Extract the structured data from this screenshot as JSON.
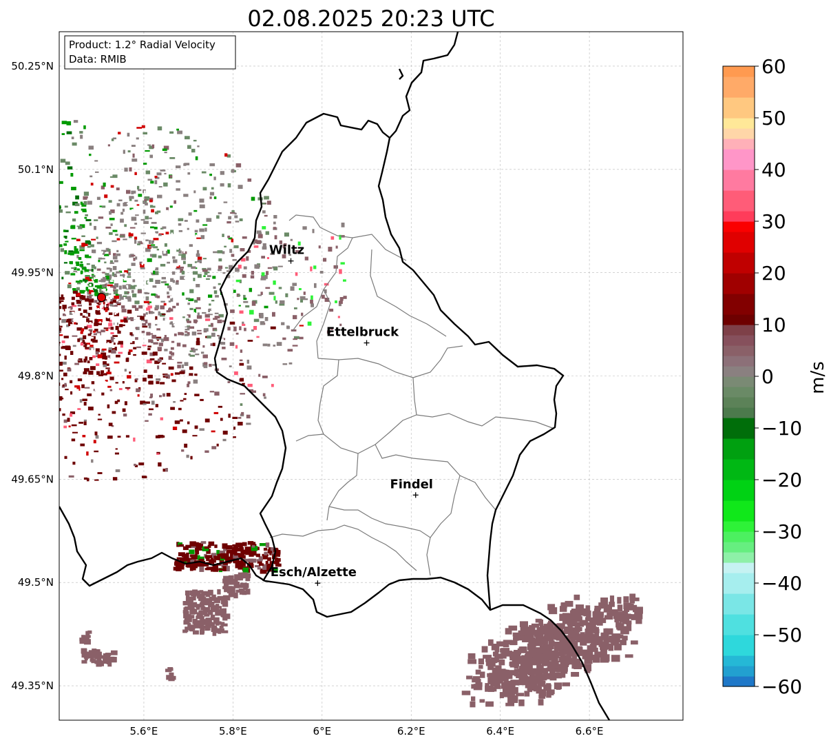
{
  "title": "02.08.2025 20:23 UTC",
  "info_box": {
    "product": "Product: 1.2° Radial Velocity",
    "source": "Data: RMIB"
  },
  "map": {
    "lon_range": [
      5.41,
      6.81
    ],
    "lat_range": [
      49.3,
      50.3
    ],
    "lon_ticks": [
      {
        "value": 5.6,
        "label": "5.6°E"
      },
      {
        "value": 5.8,
        "label": "5.8°E"
      },
      {
        "value": 6.0,
        "label": "6°E"
      },
      {
        "value": 6.2,
        "label": "6.2°E"
      },
      {
        "value": 6.4,
        "label": "6.4°E"
      },
      {
        "value": 6.6,
        "label": "6.6°E"
      }
    ],
    "lat_ticks": [
      {
        "value": 49.35,
        "label": "49.35°N"
      },
      {
        "value": 49.5,
        "label": "49.5°N"
      },
      {
        "value": 49.65,
        "label": "49.65°N"
      },
      {
        "value": 49.8,
        "label": "49.8°N"
      },
      {
        "value": 49.95,
        "label": "49.95°N"
      },
      {
        "value": 50.1,
        "label": "50.1°N"
      },
      {
        "value": 50.25,
        "label": "50.25°N"
      }
    ],
    "cities": [
      {
        "name": "Wiltz",
        "lon": 5.93,
        "lat": 49.967
      },
      {
        "name": "Ettelbruck",
        "lon": 6.1,
        "lat": 49.848
      },
      {
        "name": "Findel",
        "lon": 6.21,
        "lat": 49.627
      },
      {
        "name": "Esch/Alzette",
        "lon": 5.99,
        "lat": 49.499
      }
    ],
    "radar_site": {
      "lon": 5.505,
      "lat": 49.914
    }
  },
  "colorbar": {
    "min": -60,
    "max": 60,
    "unit_label": "m/s",
    "ticks": [
      {
        "value": 60,
        "label": "60"
      },
      {
        "value": 50,
        "label": "50"
      },
      {
        "value": 40,
        "label": "40"
      },
      {
        "value": 30,
        "label": "30"
      },
      {
        "value": 20,
        "label": "20"
      },
      {
        "value": 10,
        "label": "10"
      },
      {
        "value": 0,
        "label": "0"
      },
      {
        "value": -10,
        "label": "−10"
      },
      {
        "value": -20,
        "label": "−20"
      },
      {
        "value": -30,
        "label": "−30"
      },
      {
        "value": -40,
        "label": "−40"
      },
      {
        "value": -50,
        "label": "−50"
      },
      {
        "value": -60,
        "label": "−60"
      }
    ],
    "stops": [
      {
        "from": -60,
        "to": -58,
        "color": "#1f78c8"
      },
      {
        "from": -58,
        "to": -56,
        "color": "#22a0d0"
      },
      {
        "from": -56,
        "to": -54,
        "color": "#25b8d6"
      },
      {
        "from": -54,
        "to": -50,
        "color": "#2ed8dc"
      },
      {
        "from": -50,
        "to": -46,
        "color": "#4fe0e0"
      },
      {
        "from": -46,
        "to": -42,
        "color": "#7ae6e6"
      },
      {
        "from": -42,
        "to": -38,
        "color": "#a6eeee"
      },
      {
        "from": -38,
        "to": -36,
        "color": "#c6f2f2"
      },
      {
        "from": -36,
        "to": -34,
        "color": "#8ef0a8"
      },
      {
        "from": -34,
        "to": -32,
        "color": "#66ee80"
      },
      {
        "from": -32,
        "to": -30,
        "color": "#4cf060"
      },
      {
        "from": -30,
        "to": -28,
        "color": "#2ef238"
      },
      {
        "from": -28,
        "to": -24,
        "color": "#10e81a"
      },
      {
        "from": -24,
        "to": -20,
        "color": "#00d214"
      },
      {
        "from": -20,
        "to": -16,
        "color": "#00b814"
      },
      {
        "from": -16,
        "to": -12,
        "color": "#00a010"
      },
      {
        "from": -12,
        "to": -8,
        "color": "#006e0a"
      },
      {
        "from": -8,
        "to": -6,
        "color": "#4c7a4c"
      },
      {
        "from": -6,
        "to": -4,
        "color": "#5c8258"
      },
      {
        "from": -4,
        "to": -2,
        "color": "#6a8a66"
      },
      {
        "from": -2,
        "to": 0,
        "color": "#7a8a74"
      },
      {
        "from": 0,
        "to": 2,
        "color": "#8a8080"
      },
      {
        "from": 2,
        "to": 4,
        "color": "#8c7078"
      },
      {
        "from": 4,
        "to": 6,
        "color": "#8a6068"
      },
      {
        "from": 6,
        "to": 8,
        "color": "#86505c"
      },
      {
        "from": 8,
        "to": 10,
        "color": "#7e4048"
      },
      {
        "from": 10,
        "to": 12,
        "color": "#6e0000"
      },
      {
        "from": 12,
        "to": 16,
        "color": "#820000"
      },
      {
        "from": 16,
        "to": 20,
        "color": "#a00000"
      },
      {
        "from": 20,
        "to": 24,
        "color": "#c00000"
      },
      {
        "from": 24,
        "to": 28,
        "color": "#e00000"
      },
      {
        "from": 28,
        "to": 30,
        "color": "#fa0000"
      },
      {
        "from": 30,
        "to": 32,
        "color": "#ff3c5a"
      },
      {
        "from": 32,
        "to": 36,
        "color": "#ff5c78"
      },
      {
        "from": 36,
        "to": 40,
        "color": "#ff7aa0"
      },
      {
        "from": 40,
        "to": 44,
        "color": "#ff96c8"
      },
      {
        "from": 44,
        "to": 46,
        "color": "#ffb0b8"
      },
      {
        "from": 46,
        "to": 48,
        "color": "#ffd6a8"
      },
      {
        "from": 48,
        "to": 50,
        "color": "#ffe898"
      },
      {
        "from": 50,
        "to": 54,
        "color": "#ffc880"
      },
      {
        "from": 54,
        "to": 58,
        "color": "#ffaa68"
      },
      {
        "from": 58,
        "to": 60,
        "color": "#ff9a50"
      }
    ]
  },
  "echo_colors": {
    "green": "#009a00",
    "darkgreen": "#006e0a",
    "gray": "#8a8080",
    "graygreen": "#6a8a66",
    "mauve": "#8a6068",
    "maroon": "#6e0000",
    "red": "#d00000",
    "pink": "#ff5c78",
    "lightgreen": "#2ef238"
  }
}
